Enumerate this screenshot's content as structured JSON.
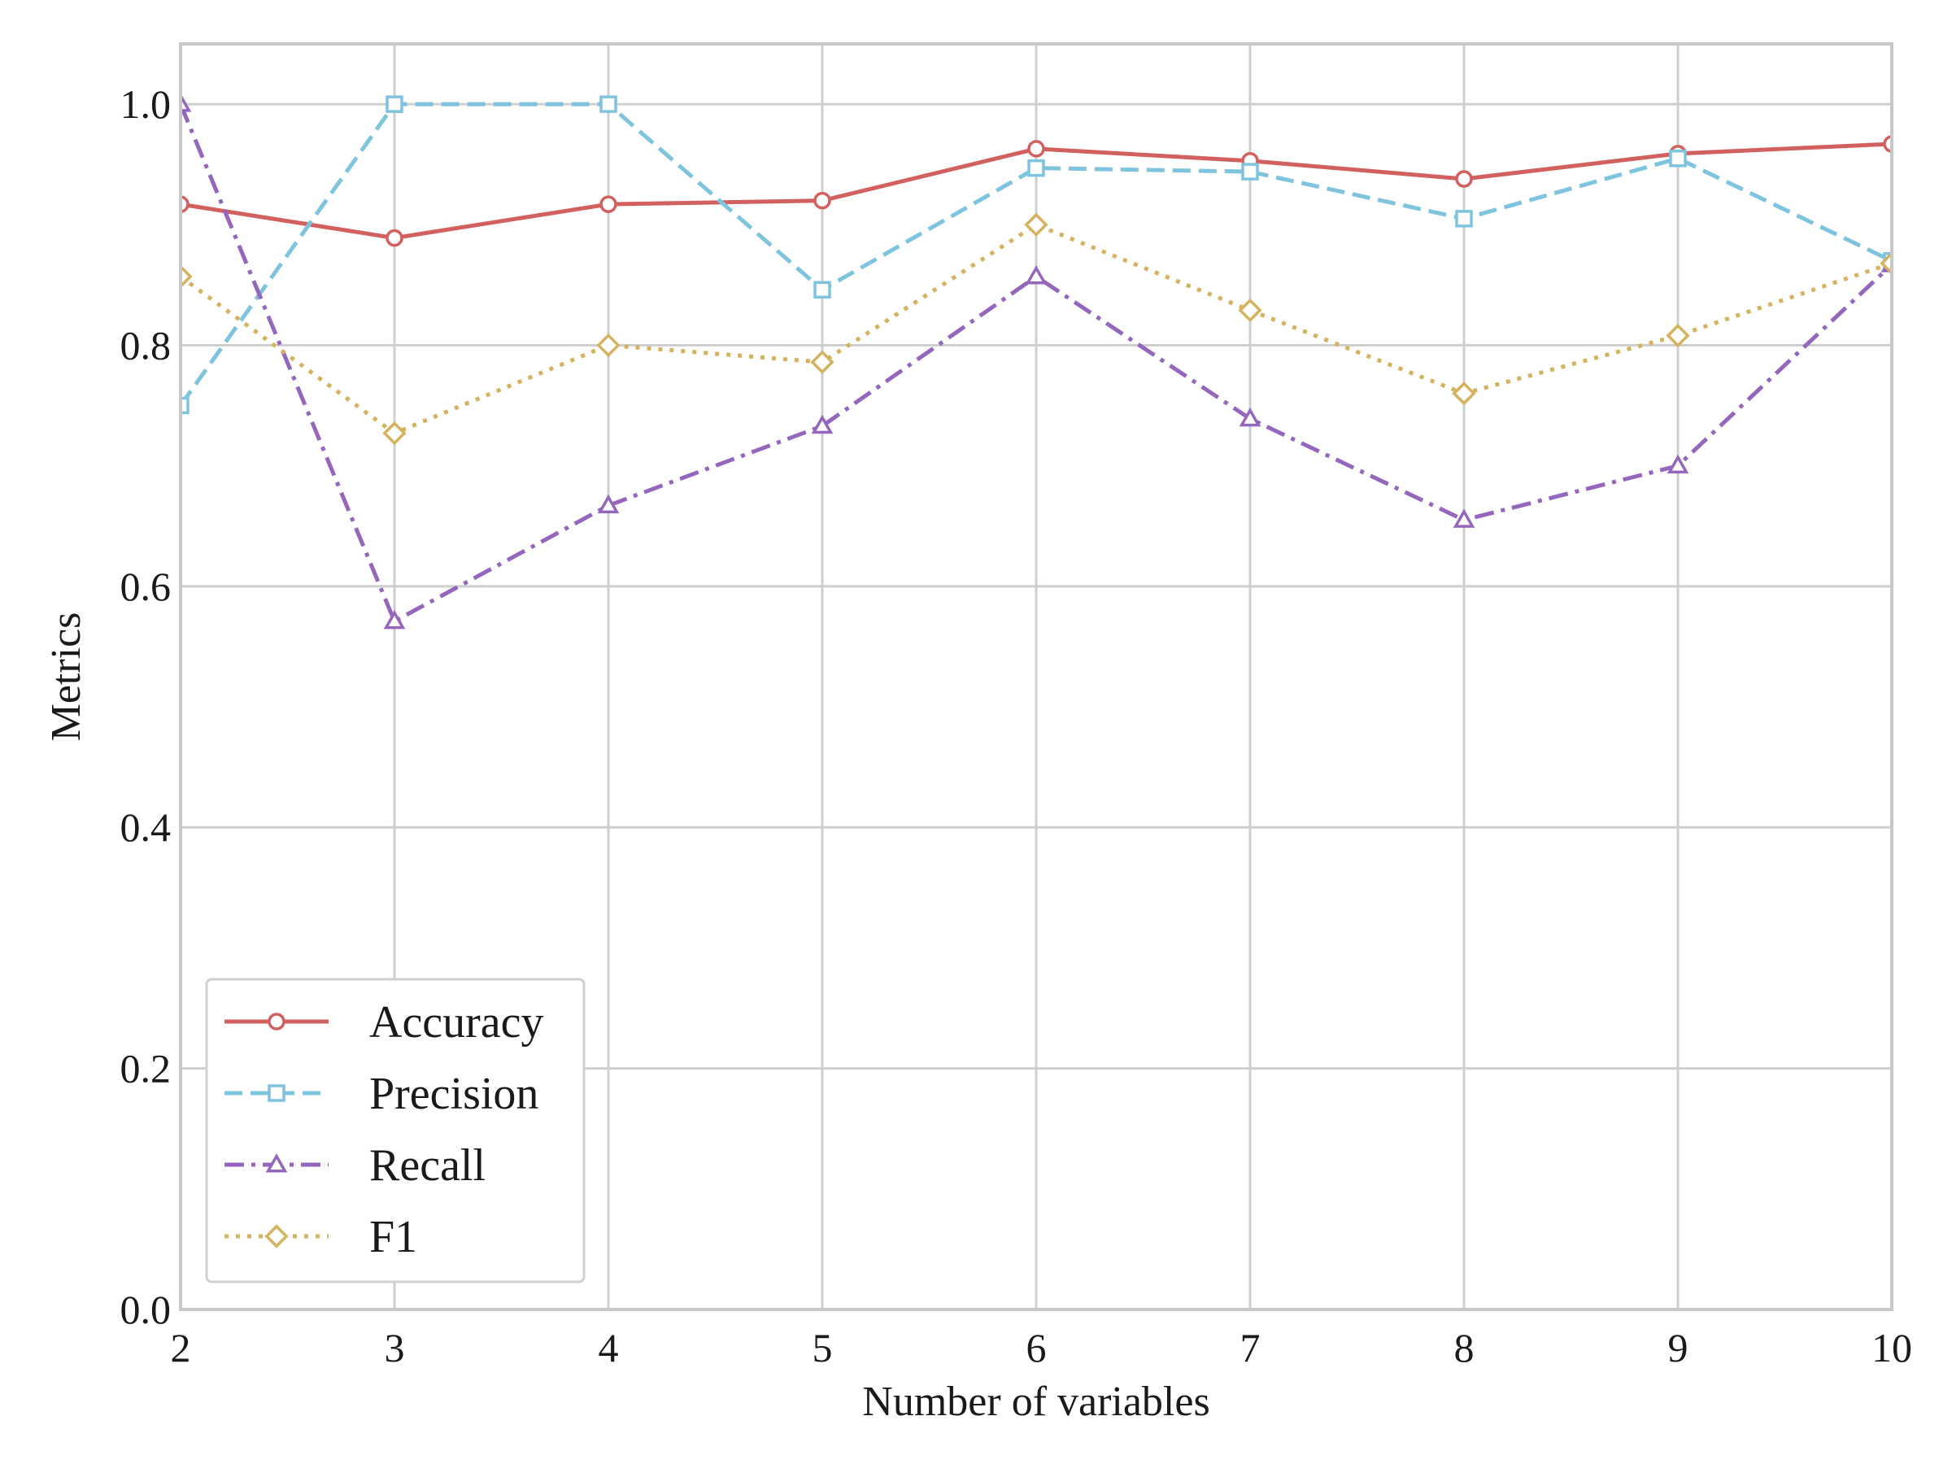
{
  "chart_data": {
    "type": "line",
    "title": "",
    "xlabel": "Number of variables",
    "ylabel": "Metrics",
    "x": [
      2,
      3,
      4,
      5,
      6,
      7,
      8,
      9,
      10
    ],
    "xlim": [
      2,
      10
    ],
    "ylim": [
      0,
      1.05
    ],
    "xticks": [
      "2",
      "3",
      "4",
      "5",
      "6",
      "7",
      "8",
      "9",
      "10"
    ],
    "yticks": [
      "0.0",
      "0.2",
      "0.4",
      "0.6",
      "0.8",
      "1.0"
    ],
    "ytick_values": [
      0.0,
      0.2,
      0.4,
      0.6,
      0.8,
      1.0
    ],
    "grid": true,
    "legend_position": "lower-left",
    "series": [
      {
        "name": "Accuracy",
        "color": "#d1605e",
        "dash": "solid",
        "marker": "circle",
        "values": [
          0.917,
          0.889,
          0.917,
          0.92,
          0.963,
          0.953,
          0.938,
          0.959,
          0.967
        ]
      },
      {
        "name": "Precision",
        "color": "#7ec4de",
        "dash": "dashed",
        "marker": "square",
        "values": [
          0.75,
          1.0,
          1.0,
          0.846,
          0.947,
          0.944,
          0.905,
          0.955,
          0.87
        ]
      },
      {
        "name": "Recall",
        "color": "#9467bd",
        "dash": "dashdot",
        "marker": "triangle",
        "values": [
          1.0,
          0.571,
          0.667,
          0.733,
          0.857,
          0.739,
          0.655,
          0.7,
          0.867
        ]
      },
      {
        "name": "F1",
        "color": "#d4b25e",
        "dash": "dotted",
        "marker": "diamond",
        "values": [
          0.857,
          0.727,
          0.8,
          0.786,
          0.9,
          0.829,
          0.76,
          0.808,
          0.868
        ]
      }
    ]
  }
}
